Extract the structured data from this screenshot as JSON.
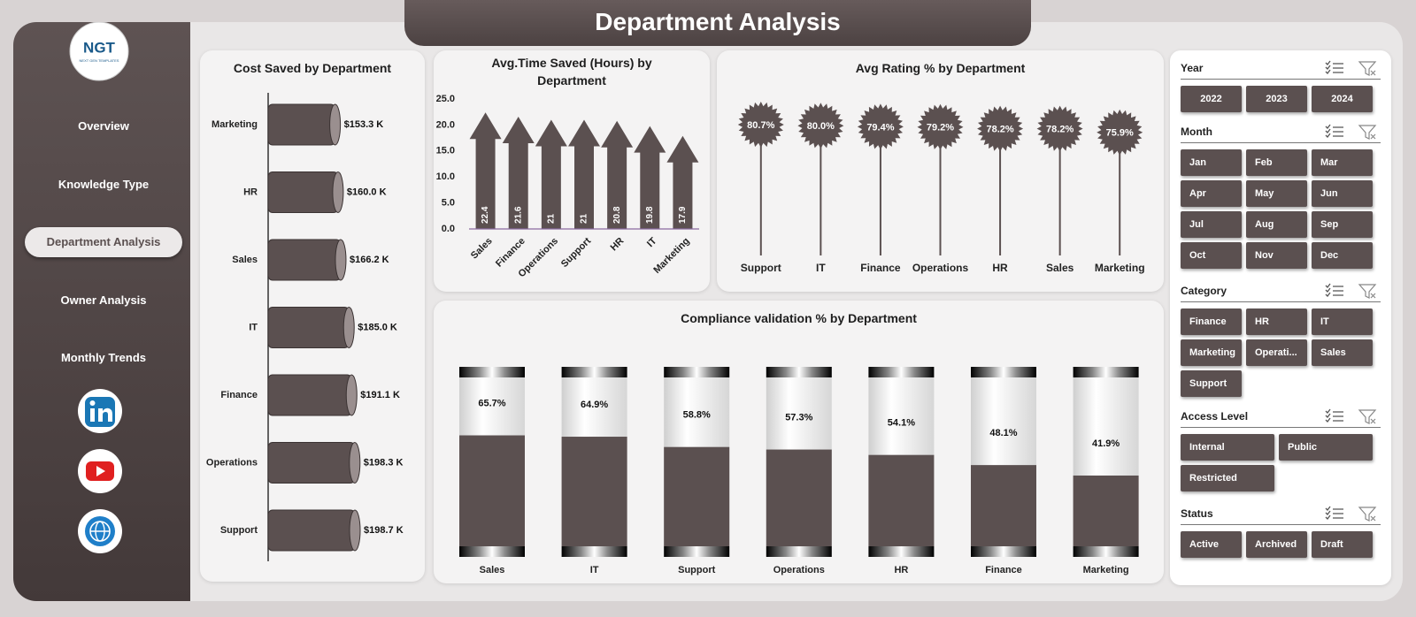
{
  "header": {
    "title": "Department Analysis"
  },
  "sidebar": {
    "logo": "NGT",
    "tagline": "NEXT GEN TEMPLATES",
    "nav": [
      "Overview",
      "Knowledge Type",
      "Department Analysis",
      "Owner Analysis",
      "Monthly Trends"
    ],
    "active": 2
  },
  "chart_data": [
    {
      "type": "bar",
      "orientation": "horizontal",
      "title": "Cost Saved by Department",
      "categories": [
        "Marketing",
        "HR",
        "Sales",
        "IT",
        "Finance",
        "Operations",
        "Support"
      ],
      "values": [
        153.3,
        160.0,
        166.2,
        185.0,
        191.1,
        198.3,
        198.7
      ],
      "value_labels": [
        "$153.3 K",
        "$160.0 K",
        "$166.2 K",
        "$185.0 K",
        "$191.1 K",
        "$198.3 K",
        "$198.7 K"
      ],
      "color": "#5b5050"
    },
    {
      "type": "bar",
      "orientation": "vertical",
      "title": "Avg.Time Saved (Hours) by Department",
      "categories": [
        "Sales",
        "Finance",
        "Operations",
        "Support",
        "HR",
        "IT",
        "Marketing"
      ],
      "values": [
        22.4,
        21.6,
        21.0,
        21.0,
        20.8,
        19.8,
        17.9
      ],
      "ylim": [
        0,
        25
      ],
      "yticks": [
        {
          "value": 0,
          "label": "0.0"
        },
        {
          "value": 5,
          "label": "5.0"
        },
        {
          "value": 10,
          "label": "10.0"
        },
        {
          "value": 15,
          "label": "15.0"
        },
        {
          "value": 20,
          "label": "20.0"
        },
        {
          "value": 25,
          "label": "25.0"
        }
      ],
      "grid": false,
      "color": "#5b5050"
    },
    {
      "type": "lollipop",
      "title": "Avg Rating % by Department",
      "categories": [
        "Support",
        "IT",
        "Finance",
        "Operations",
        "HR",
        "Sales",
        "Marketing"
      ],
      "values": [
        80.7,
        80.0,
        79.4,
        79.2,
        78.2,
        78.2,
        75.9
      ],
      "value_labels": [
        "80.7%",
        "80.0%",
        "79.4%",
        "79.2%",
        "78.2%",
        "78.2%",
        "75.9%"
      ],
      "color": "#5b5050"
    },
    {
      "type": "bar",
      "orientation": "vertical",
      "title": "Compliance validation % by Department",
      "categories": [
        "Sales",
        "IT",
        "Support",
        "Operations",
        "HR",
        "Finance",
        "Marketing"
      ],
      "values": [
        65.7,
        64.9,
        58.8,
        57.3,
        54.1,
        48.1,
        41.9
      ],
      "value_labels": [
        "65.7%",
        "64.9%",
        "58.8%",
        "57.3%",
        "54.1%",
        "48.1%",
        "41.9%"
      ],
      "ylim": [
        0,
        100
      ],
      "color": "#5b5050"
    }
  ],
  "slicers": [
    {
      "title": "Year",
      "items": [
        "2022",
        "2023",
        "2024"
      ]
    },
    {
      "title": "Month",
      "items": [
        "Jan",
        "Feb",
        "Mar",
        "Apr",
        "May",
        "Jun",
        "Jul",
        "Aug",
        "Sep",
        "Oct",
        "Nov",
        "Dec"
      ]
    },
    {
      "title": "Category",
      "items": [
        "Finance",
        "HR",
        "IT",
        "Marketing",
        "Operati...",
        "Sales",
        "Support"
      ]
    },
    {
      "title": "Access Level",
      "items": [
        "Internal",
        "Public",
        "Restricted"
      ]
    },
    {
      "title": "Status",
      "items": [
        "Active",
        "Archived",
        "Draft"
      ]
    }
  ]
}
